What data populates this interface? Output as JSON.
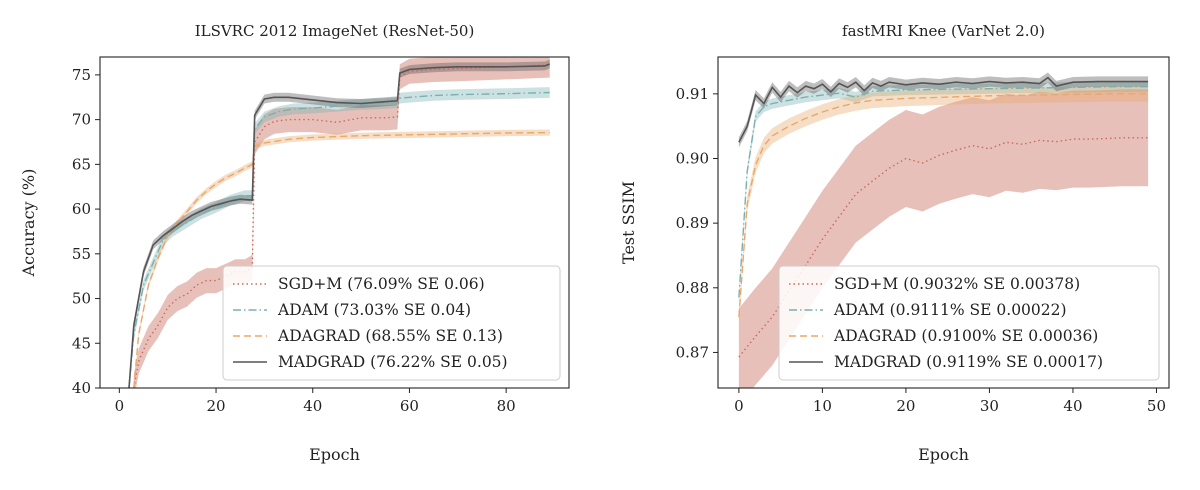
{
  "chart_data": [
    {
      "type": "line",
      "title": "ILSVRC 2012 ImageNet (ResNet-50)",
      "xlabel": "Epoch",
      "ylabel": "Accuracy (%)",
      "xlim": [
        -4,
        93
      ],
      "ylim": [
        40,
        77
      ],
      "xticks": [
        0,
        20,
        40,
        60,
        80
      ],
      "yticks": [
        40,
        45,
        50,
        55,
        60,
        65,
        70,
        75
      ],
      "legend_position": "lower-right",
      "series": [
        {
          "name": "SGD+M (76.09% SE 0.06)",
          "color": "#c96a5a",
          "style": "dotted",
          "band": 1.4,
          "points": [
            [
              3,
              40
            ],
            [
              4,
              43
            ],
            [
              6,
              45.5
            ],
            [
              8,
              47
            ],
            [
              10,
              49
            ],
            [
              12,
              50
            ],
            [
              14,
              50.5
            ],
            [
              16,
              51.5
            ],
            [
              18,
              52
            ],
            [
              20,
              52
            ],
            [
              22,
              52.5
            ],
            [
              24,
              53
            ],
            [
              26,
              53
            ],
            [
              27.5,
              53.5
            ],
            [
              28,
              67.5
            ],
            [
              30,
              69.2
            ],
            [
              32,
              69.8
            ],
            [
              35,
              70
            ],
            [
              40,
              70
            ],
            [
              45,
              69.7
            ],
            [
              50,
              70.2
            ],
            [
              55,
              70.2
            ],
            [
              57.5,
              70.3
            ],
            [
              58,
              74.8
            ],
            [
              60,
              75.4
            ],
            [
              65,
              75.6
            ],
            [
              70,
              75.7
            ],
            [
              80,
              75.9
            ],
            [
              89,
              76.1
            ]
          ]
        },
        {
          "name": "ADAM (73.03% SE 0.04)",
          "color": "#7ab0b0",
          "style": "dashdot",
          "band": 0.6,
          "points": [
            [
              2,
              40
            ],
            [
              3,
              46
            ],
            [
              5,
              51.5
            ],
            [
              7,
              54
            ],
            [
              9,
              56.5
            ],
            [
              11,
              57.5
            ],
            [
              14,
              58.5
            ],
            [
              17,
              59.5
            ],
            [
              20,
              60.2
            ],
            [
              23,
              61
            ],
            [
              26,
              61.5
            ],
            [
              27.5,
              61.5
            ],
            [
              28,
              69
            ],
            [
              30,
              70.3
            ],
            [
              33,
              70.9
            ],
            [
              36,
              71.2
            ],
            [
              40,
              71.3
            ],
            [
              45,
              71.5
            ],
            [
              50,
              71.7
            ],
            [
              55,
              71.8
            ],
            [
              57.5,
              71.9
            ],
            [
              58,
              72.4
            ],
            [
              60,
              72.5
            ],
            [
              65,
              72.7
            ],
            [
              70,
              72.8
            ],
            [
              80,
              72.9
            ],
            [
              89,
              73.03
            ]
          ]
        },
        {
          "name": "ADAGRAD (68.55% SE 0.13)",
          "color": "#e8a86a",
          "style": "dashed",
          "band": 0.35,
          "points": [
            [
              3,
              40
            ],
            [
              4,
              46
            ],
            [
              6,
              51.5
            ],
            [
              8,
              54.5
            ],
            [
              10,
              57
            ],
            [
              12,
              58.5
            ],
            [
              14,
              59.7
            ],
            [
              16,
              61
            ],
            [
              18,
              62
            ],
            [
              20,
              62.8
            ],
            [
              22,
              63.5
            ],
            [
              24,
              64
            ],
            [
              26,
              64.6
            ],
            [
              27.5,
              65
            ],
            [
              28,
              67
            ],
            [
              30,
              67.4
            ],
            [
              35,
              67.8
            ],
            [
              40,
              68
            ],
            [
              45,
              68.1
            ],
            [
              50,
              68.2
            ],
            [
              60,
              68.3
            ],
            [
              70,
              68.4
            ],
            [
              80,
              68.5
            ],
            [
              89,
              68.55
            ]
          ]
        },
        {
          "name": "MADGRAD (76.22% SE 0.05)",
          "color": "#555555",
          "style": "solid",
          "band": 0.5,
          "points": [
            [
              2,
              40
            ],
            [
              3,
              47
            ],
            [
              5,
              53
            ],
            [
              7,
              56
            ],
            [
              9,
              57
            ],
            [
              11,
              57.8
            ],
            [
              13,
              58.6
            ],
            [
              15,
              59.3
            ],
            [
              17,
              59.8
            ],
            [
              19,
              60.3
            ],
            [
              21,
              60.6
            ],
            [
              23,
              60.9
            ],
            [
              25,
              61.1
            ],
            [
              27.5,
              61
            ],
            [
              28,
              70.5
            ],
            [
              30,
              72.3
            ],
            [
              32,
              72.5
            ],
            [
              35,
              72.5
            ],
            [
              40,
              72.2
            ],
            [
              45,
              71.9
            ],
            [
              50,
              71.8
            ],
            [
              55,
              72
            ],
            [
              57.5,
              72.1
            ],
            [
              58,
              75.2
            ],
            [
              60,
              75.6
            ],
            [
              65,
              75.8
            ],
            [
              70,
              75.9
            ],
            [
              80,
              75.9
            ],
            [
              88,
              76
            ],
            [
              89,
              76.22
            ]
          ]
        }
      ]
    },
    {
      "type": "line",
      "title": "fastMRI Knee (VarNet 2.0)",
      "xlabel": "Epoch",
      "ylabel": "Test SSIM",
      "xlim": [
        -2.5,
        51.5
      ],
      "ylim": [
        0.8645,
        0.9157
      ],
      "xticks": [
        0,
        10,
        20,
        30,
        40,
        50
      ],
      "yticks": [
        0.87,
        0.88,
        0.89,
        0.9,
        0.91
      ],
      "legend_position": "lower-right",
      "series": [
        {
          "name": "SGD+M (0.9032% SE 0.00378)",
          "color": "#c96a5a",
          "style": "dotted",
          "band": 0.0075,
          "points": [
            [
              0,
              0.8693
            ],
            [
              2,
              0.8725
            ],
            [
              4,
              0.8755
            ],
            [
              6,
              0.8795
            ],
            [
              8,
              0.8835
            ],
            [
              10,
              0.8875
            ],
            [
              12,
              0.891
            ],
            [
              14,
              0.8945
            ],
            [
              16,
              0.8965
            ],
            [
              18,
              0.8985
            ],
            [
              20,
              0.9
            ],
            [
              22,
              0.8993
            ],
            [
              24,
              0.9005
            ],
            [
              26,
              0.9013
            ],
            [
              28,
              0.902
            ],
            [
              30,
              0.9015
            ],
            [
              32,
              0.9025
            ],
            [
              34,
              0.9022
            ],
            [
              36,
              0.9028
            ],
            [
              38,
              0.9026
            ],
            [
              40,
              0.903
            ],
            [
              42,
              0.903
            ],
            [
              44,
              0.9031
            ],
            [
              46,
              0.9032
            ],
            [
              49,
              0.9032
            ]
          ]
        },
        {
          "name": "ADAM (0.9111% SE 0.00022)",
          "color": "#7ab0b0",
          "style": "dashdot",
          "band": 0.0008,
          "points": [
            [
              0,
              0.8785
            ],
            [
              1,
              0.898
            ],
            [
              2,
              0.9065
            ],
            [
              3,
              0.908
            ],
            [
              4,
              0.9085
            ],
            [
              6,
              0.909
            ],
            [
              8,
              0.9095
            ],
            [
              10,
              0.9098
            ],
            [
              12,
              0.9101
            ],
            [
              14,
              0.9095
            ],
            [
              16,
              0.9104
            ],
            [
              20,
              0.9106
            ],
            [
              25,
              0.9107
            ],
            [
              30,
              0.9108
            ],
            [
              35,
              0.9109
            ],
            [
              40,
              0.911
            ],
            [
              45,
              0.9111
            ],
            [
              49,
              0.9111
            ]
          ]
        },
        {
          "name": "ADAGRAD (0.9100% SE 0.00036)",
          "color": "#e8a86a",
          "style": "dashed",
          "band": 0.0012,
          "points": [
            [
              0,
              0.8755
            ],
            [
              1,
              0.893
            ],
            [
              2,
              0.899
            ],
            [
              3,
              0.902
            ],
            [
              4,
              0.9035
            ],
            [
              6,
              0.905
            ],
            [
              8,
              0.9062
            ],
            [
              10,
              0.9072
            ],
            [
              12,
              0.908
            ],
            [
              14,
              0.9086
            ],
            [
              16,
              0.909
            ],
            [
              20,
              0.9093
            ],
            [
              25,
              0.9095
            ],
            [
              30,
              0.9097
            ],
            [
              35,
              0.9098
            ],
            [
              40,
              0.9099
            ],
            [
              45,
              0.91
            ],
            [
              49,
              0.91
            ]
          ]
        },
        {
          "name": "MADGRAD (0.9119% SE 0.00017)",
          "color": "#555555",
          "style": "solid",
          "band": 0.0008,
          "points": [
            [
              0,
              0.9025
            ],
            [
              1,
              0.905
            ],
            [
              2,
              0.9098
            ],
            [
              3,
              0.9085
            ],
            [
              4,
              0.911
            ],
            [
              5,
              0.9095
            ],
            [
              6,
              0.9112
            ],
            [
              7,
              0.9102
            ],
            [
              8,
              0.9112
            ],
            [
              9,
              0.9108
            ],
            [
              10,
              0.9115
            ],
            [
              11,
              0.9103
            ],
            [
              12,
              0.9116
            ],
            [
              13,
              0.911
            ],
            [
              14,
              0.9118
            ],
            [
              15,
              0.9105
            ],
            [
              16,
              0.9117
            ],
            [
              17,
              0.9112
            ],
            [
              18,
              0.9118
            ],
            [
              20,
              0.9114
            ],
            [
              22,
              0.9117
            ],
            [
              24,
              0.9115
            ],
            [
              26,
              0.9118
            ],
            [
              28,
              0.9116
            ],
            [
              30,
              0.9119
            ],
            [
              32,
              0.9117
            ],
            [
              34,
              0.9118
            ],
            [
              36,
              0.9116
            ],
            [
              37,
              0.9125
            ],
            [
              38,
              0.9112
            ],
            [
              40,
              0.9118
            ],
            [
              43,
              0.9119
            ],
            [
              46,
              0.9119
            ],
            [
              49,
              0.9119
            ]
          ]
        }
      ]
    }
  ]
}
